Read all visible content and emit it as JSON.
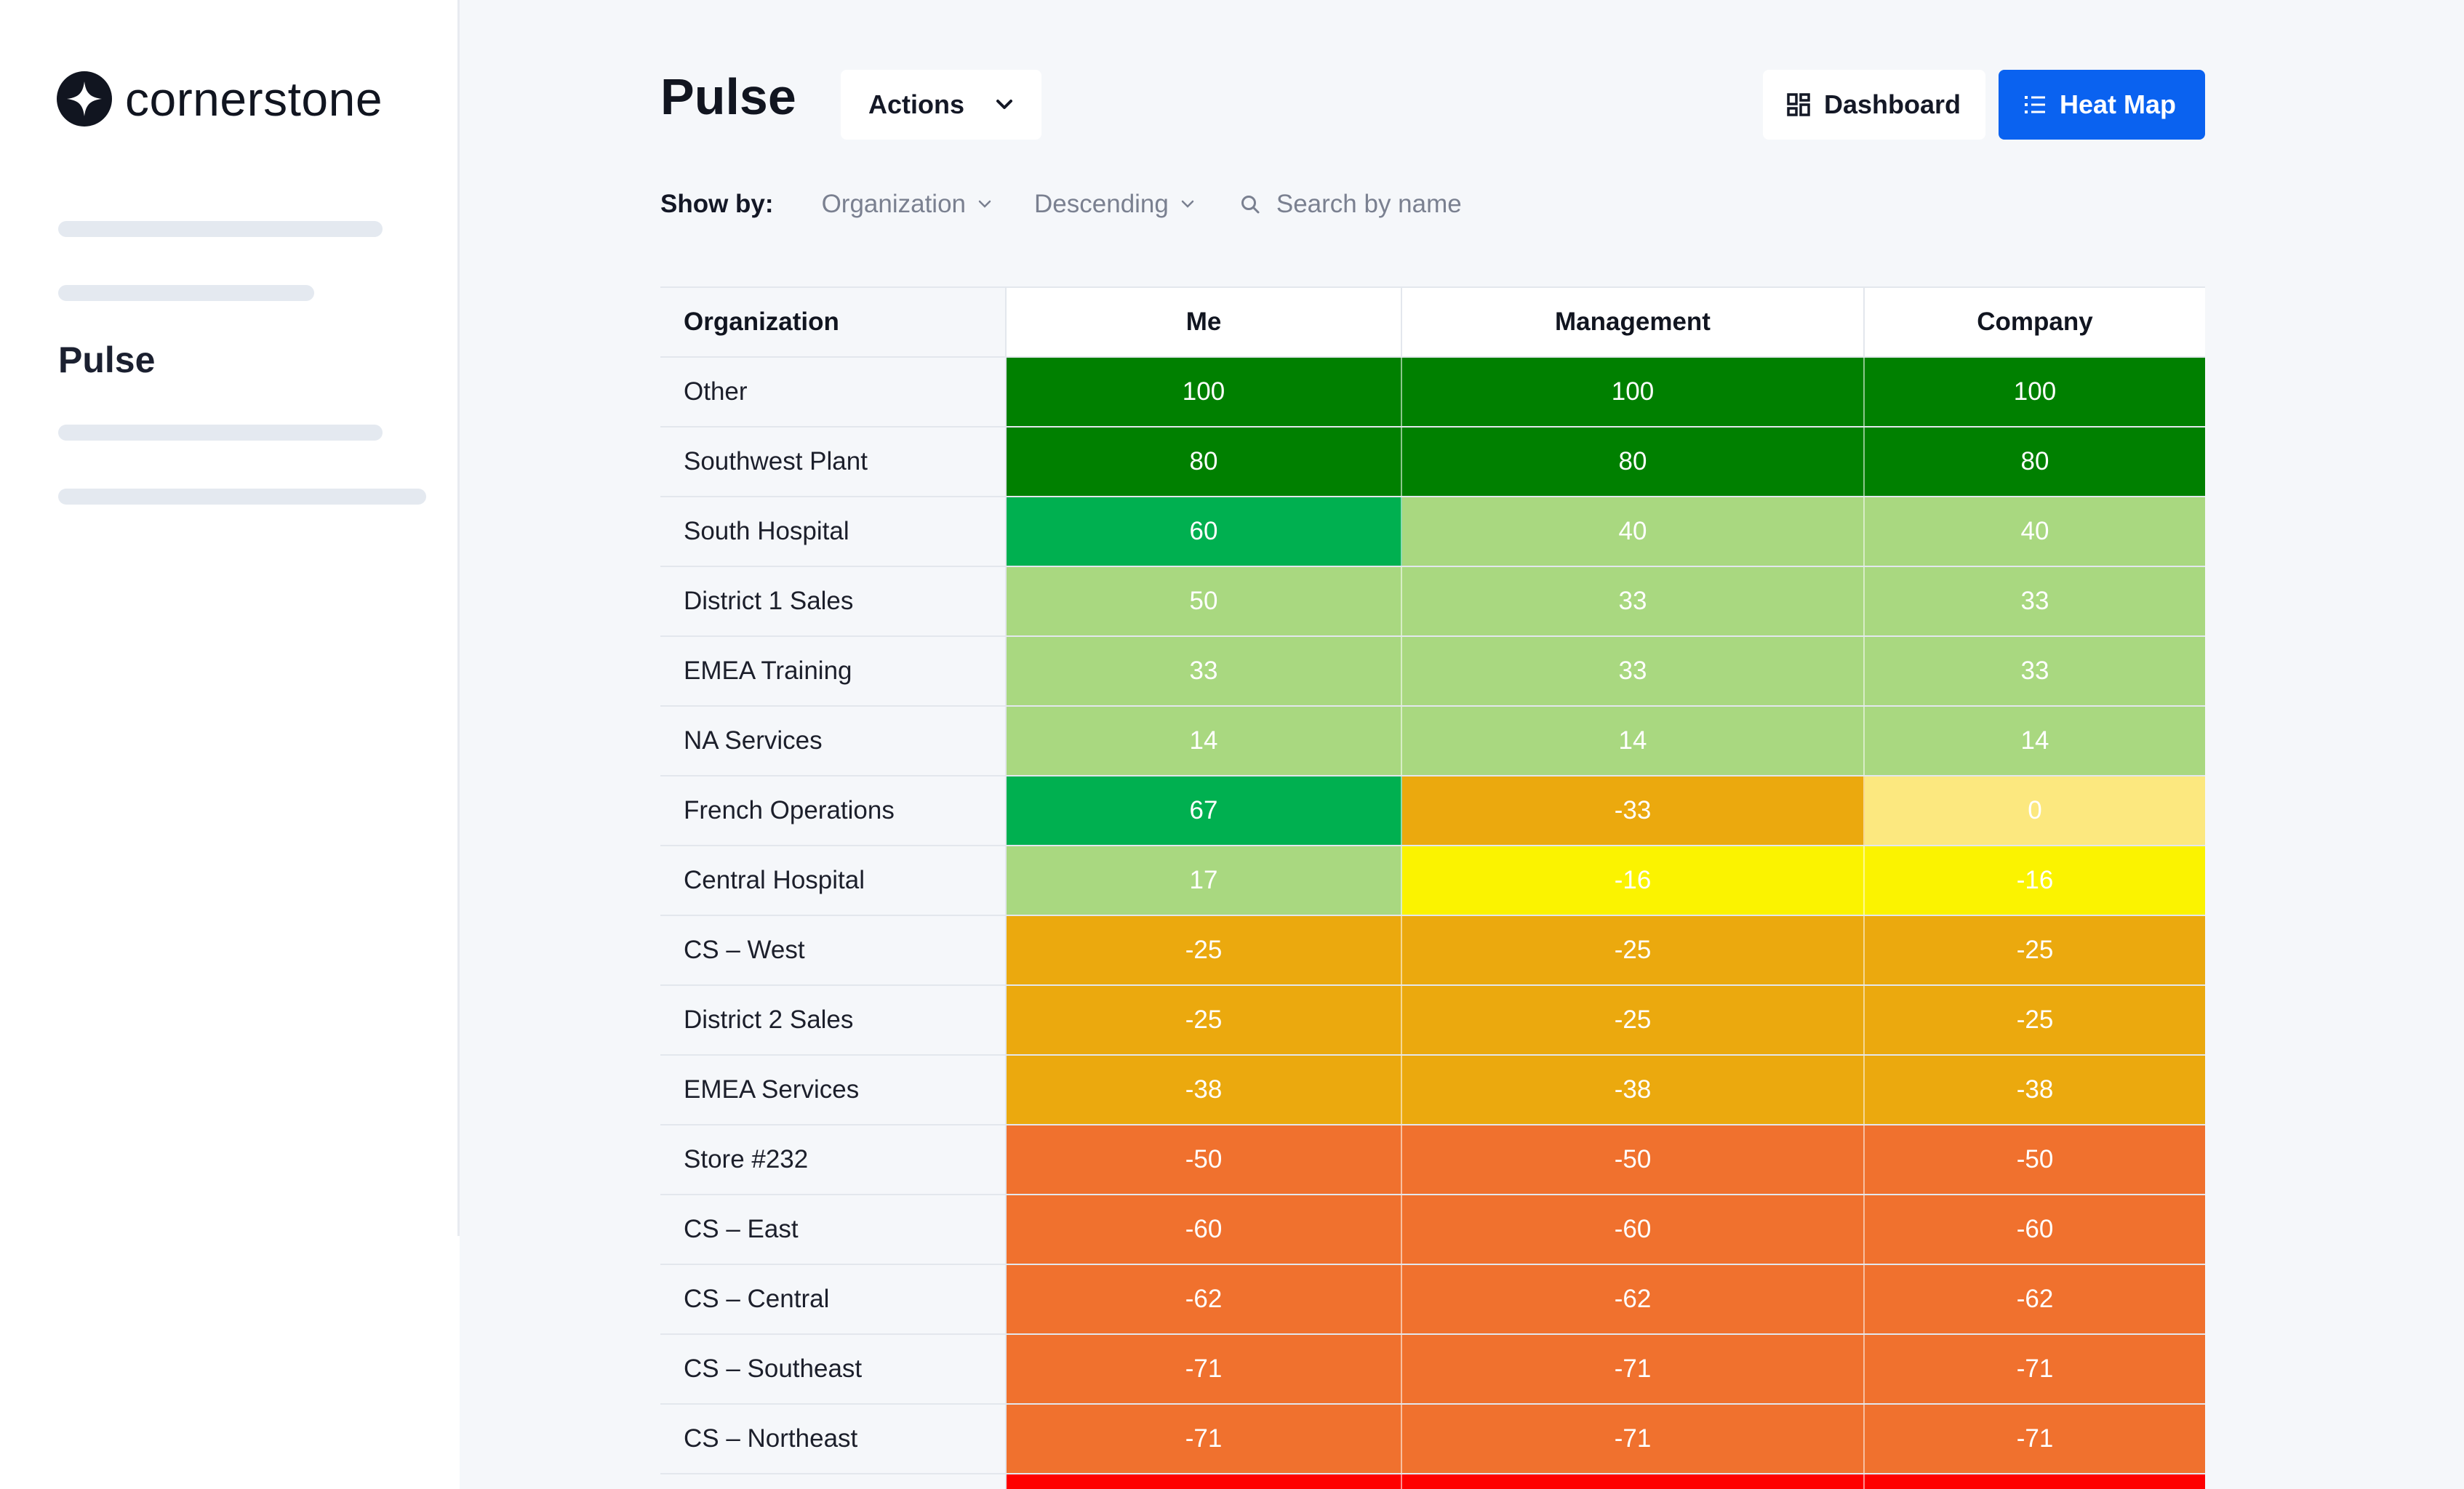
{
  "app": {
    "brand": "cornerstone",
    "nav_active": "Pulse"
  },
  "header": {
    "title": "Pulse",
    "actions_label": "Actions",
    "dashboard_label": "Dashboard",
    "heatmap_label": "Heat Map"
  },
  "filters": {
    "show_by_label": "Show by:",
    "group_value": "Organization",
    "sort_value": "Descending",
    "search_placeholder": "Search by name"
  },
  "table": {
    "columns": [
      "Organization",
      "Me",
      "Management",
      "Company"
    ],
    "rows": [
      {
        "name": "Other",
        "values": [
          "100",
          "100",
          "100"
        ],
        "colors": [
          "#008000",
          "#008000",
          "#008000"
        ]
      },
      {
        "name": "Southwest Plant",
        "values": [
          "80",
          "80",
          "80"
        ],
        "colors": [
          "#008000",
          "#008000",
          "#008000"
        ]
      },
      {
        "name": "South Hospital",
        "values": [
          "60",
          "40",
          "40"
        ],
        "colors": [
          "#00b050",
          "#a9d880",
          "#a9d880"
        ]
      },
      {
        "name": "District 1 Sales",
        "values": [
          "50",
          "33",
          "33"
        ],
        "colors": [
          "#a9d880",
          "#a9d880",
          "#a9d880"
        ]
      },
      {
        "name": "EMEA Training",
        "values": [
          "33",
          "33",
          "33"
        ],
        "colors": [
          "#a9d880",
          "#a9d880",
          "#a9d880"
        ]
      },
      {
        "name": "NA Services",
        "values": [
          "14",
          "14",
          "14"
        ],
        "colors": [
          "#a9d880",
          "#a9d880",
          "#a9d880"
        ]
      },
      {
        "name": "French Operations",
        "values": [
          "67",
          "-33",
          "0"
        ],
        "colors": [
          "#00b050",
          "#eba90e",
          "#fce87f"
        ]
      },
      {
        "name": "Central Hospital",
        "values": [
          "17",
          "-16",
          "-16"
        ],
        "colors": [
          "#a9d880",
          "#fbf300",
          "#fbf300"
        ]
      },
      {
        "name": "CS – West",
        "values": [
          "-25",
          "-25",
          "-25"
        ],
        "colors": [
          "#eba90e",
          "#eba90e",
          "#eba90e"
        ]
      },
      {
        "name": "District 2 Sales",
        "values": [
          "-25",
          "-25",
          "-25"
        ],
        "colors": [
          "#eba90e",
          "#eba90e",
          "#eba90e"
        ]
      },
      {
        "name": "EMEA Services",
        "values": [
          "-38",
          "-38",
          "-38"
        ],
        "colors": [
          "#eba90e",
          "#eba90e",
          "#eba90e"
        ]
      },
      {
        "name": "Store #232",
        "values": [
          "-50",
          "-50",
          "-50"
        ],
        "colors": [
          "#f0712e",
          "#f0712e",
          "#f0712e"
        ]
      },
      {
        "name": "CS – East",
        "values": [
          "-60",
          "-60",
          "-60"
        ],
        "colors": [
          "#f0712e",
          "#f0712e",
          "#f0712e"
        ]
      },
      {
        "name": "CS – Central",
        "values": [
          "-62",
          "-62",
          "-62"
        ],
        "colors": [
          "#f0712e",
          "#f0712e",
          "#f0712e"
        ]
      },
      {
        "name": "CS – Southeast",
        "values": [
          "-71",
          "-71",
          "-71"
        ],
        "colors": [
          "#f0712e",
          "#f0712e",
          "#f0712e"
        ]
      },
      {
        "name": "CS – Northeast",
        "values": [
          "-71",
          "-71",
          "-71"
        ],
        "colors": [
          "#f0712e",
          "#f0712e",
          "#f0712e"
        ]
      }
    ],
    "partial_row_color": "#fe0000"
  }
}
